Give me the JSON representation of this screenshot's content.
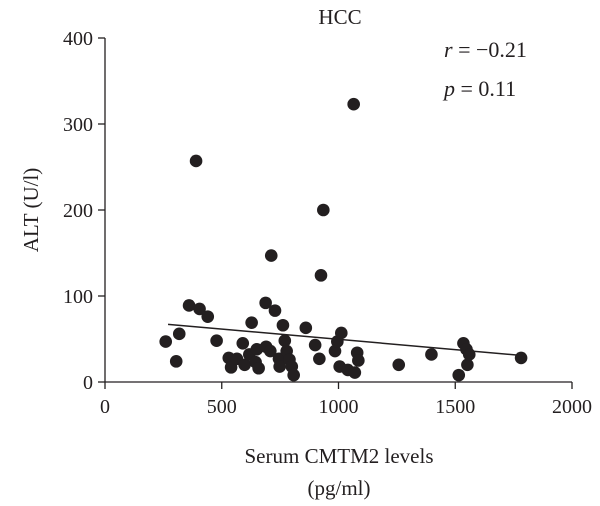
{
  "chart_data": {
    "type": "scatter",
    "title": "HCC",
    "xlabel_line1": "Serum CMTM2 levels",
    "xlabel_line2": "(pg/ml)",
    "ylabel": "ALT (U/l)",
    "xlim": [
      0,
      2000
    ],
    "ylim": [
      0,
      400
    ],
    "x_ticks": [
      0,
      500,
      1000,
      1500,
      2000
    ],
    "y_ticks": [
      0,
      100,
      200,
      300,
      400
    ],
    "grid": false,
    "legend": "none",
    "annotation": {
      "r_symbol": "r",
      "r_value": " = −0.21",
      "p_symbol": "p",
      "p_value": " = 0.11"
    },
    "trendline": {
      "x": [
        270,
        1780
      ],
      "y": [
        67,
        31
      ]
    },
    "points": [
      {
        "x": 260,
        "y": 47
      },
      {
        "x": 305,
        "y": 24
      },
      {
        "x": 318,
        "y": 56
      },
      {
        "x": 360,
        "y": 89
      },
      {
        "x": 390,
        "y": 257
      },
      {
        "x": 405,
        "y": 85
      },
      {
        "x": 440,
        "y": 76
      },
      {
        "x": 478,
        "y": 48
      },
      {
        "x": 530,
        "y": 28
      },
      {
        "x": 540,
        "y": 17
      },
      {
        "x": 565,
        "y": 27
      },
      {
        "x": 590,
        "y": 45
      },
      {
        "x": 598,
        "y": 20
      },
      {
        "x": 618,
        "y": 32
      },
      {
        "x": 628,
        "y": 69
      },
      {
        "x": 645,
        "y": 23
      },
      {
        "x": 650,
        "y": 38
      },
      {
        "x": 658,
        "y": 16
      },
      {
        "x": 688,
        "y": 92
      },
      {
        "x": 690,
        "y": 41
      },
      {
        "x": 708,
        "y": 36
      },
      {
        "x": 712,
        "y": 147
      },
      {
        "x": 728,
        "y": 83
      },
      {
        "x": 745,
        "y": 27
      },
      {
        "x": 748,
        "y": 18
      },
      {
        "x": 762,
        "y": 66
      },
      {
        "x": 770,
        "y": 48
      },
      {
        "x": 778,
        "y": 36
      },
      {
        "x": 790,
        "y": 26
      },
      {
        "x": 800,
        "y": 18
      },
      {
        "x": 808,
        "y": 8
      },
      {
        "x": 860,
        "y": 63
      },
      {
        "x": 900,
        "y": 43
      },
      {
        "x": 918,
        "y": 27
      },
      {
        "x": 925,
        "y": 124
      },
      {
        "x": 935,
        "y": 200
      },
      {
        "x": 985,
        "y": 36
      },
      {
        "x": 995,
        "y": 47
      },
      {
        "x": 1005,
        "y": 18
      },
      {
        "x": 1012,
        "y": 57
      },
      {
        "x": 1040,
        "y": 14
      },
      {
        "x": 1065,
        "y": 323
      },
      {
        "x": 1070,
        "y": 11
      },
      {
        "x": 1080,
        "y": 34
      },
      {
        "x": 1085,
        "y": 25
      },
      {
        "x": 1258,
        "y": 20
      },
      {
        "x": 1398,
        "y": 32
      },
      {
        "x": 1515,
        "y": 8
      },
      {
        "x": 1535,
        "y": 45
      },
      {
        "x": 1548,
        "y": 38
      },
      {
        "x": 1552,
        "y": 20
      },
      {
        "x": 1560,
        "y": 32
      },
      {
        "x": 1782,
        "y": 28
      }
    ]
  }
}
